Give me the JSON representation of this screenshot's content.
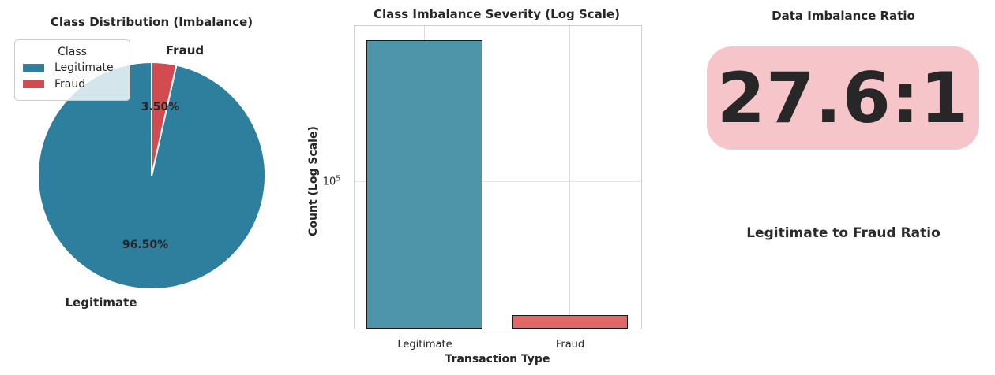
{
  "colors": {
    "pie_legitimate": "#2e7f9e",
    "pie_fraud": "#d24b50",
    "bar_legitimate": "#4e95a9",
    "bar_fraud": "#e06767",
    "bar_edge": "#1a1a1a",
    "ratio_box_bg": "#f5c5c9",
    "text": "#262626",
    "spine": "#cfcfcf"
  },
  "pie_panel": {
    "title": "Class Distribution (Imbalance)",
    "legend": {
      "title": "Class",
      "items": [
        {
          "label": "Legitimate"
        },
        {
          "label": "Fraud"
        }
      ]
    },
    "slice_labels": {
      "legitimate": "Legitimate",
      "fraud": "Fraud"
    },
    "pct_labels": {
      "legitimate": "96.50%",
      "fraud": "3.50%"
    }
  },
  "bar_panel": {
    "title": "Class Imbalance Severity (Log Scale)",
    "ylabel": "Count (Log Scale)",
    "xlabel": "Transaction Type",
    "ytick": {
      "base": "10",
      "exp": "5"
    },
    "xticks": [
      "Legitimate",
      "Fraud"
    ]
  },
  "ratio_panel": {
    "title": "Data Imbalance Ratio",
    "value": "27.6:1",
    "caption": "Legitimate to Fraud Ratio"
  },
  "chart_data": [
    {
      "type": "pie",
      "title": "Class Distribution (Imbalance)",
      "labels": [
        "Legitimate",
        "Fraud"
      ],
      "values": [
        96.5,
        3.5
      ],
      "pct_labels": [
        "96.50%",
        "3.50%"
      ],
      "colors": [
        "#2e7f9e",
        "#d24b50"
      ],
      "start_angle_deg": 90,
      "legend_title": "Class",
      "legend_position": "upper-left"
    },
    {
      "type": "bar",
      "title": "Class Imbalance Severity (Log Scale)",
      "categories": [
        "Legitimate",
        "Fraud"
      ],
      "values": [
        552000,
        20000
      ],
      "xlabel": "Transaction Type",
      "ylabel": "Count (Log Scale)",
      "yscale": "log",
      "ylim": [
        17000,
        650000
      ],
      "ytick_labeled": 100000,
      "colors": [
        "#4e95a9",
        "#e06767"
      ],
      "grid": true,
      "legend": false
    },
    {
      "type": "big-number",
      "title": "Data Imbalance Ratio",
      "value": "27.6:1",
      "caption": "Legitimate to Fraud Ratio"
    }
  ]
}
